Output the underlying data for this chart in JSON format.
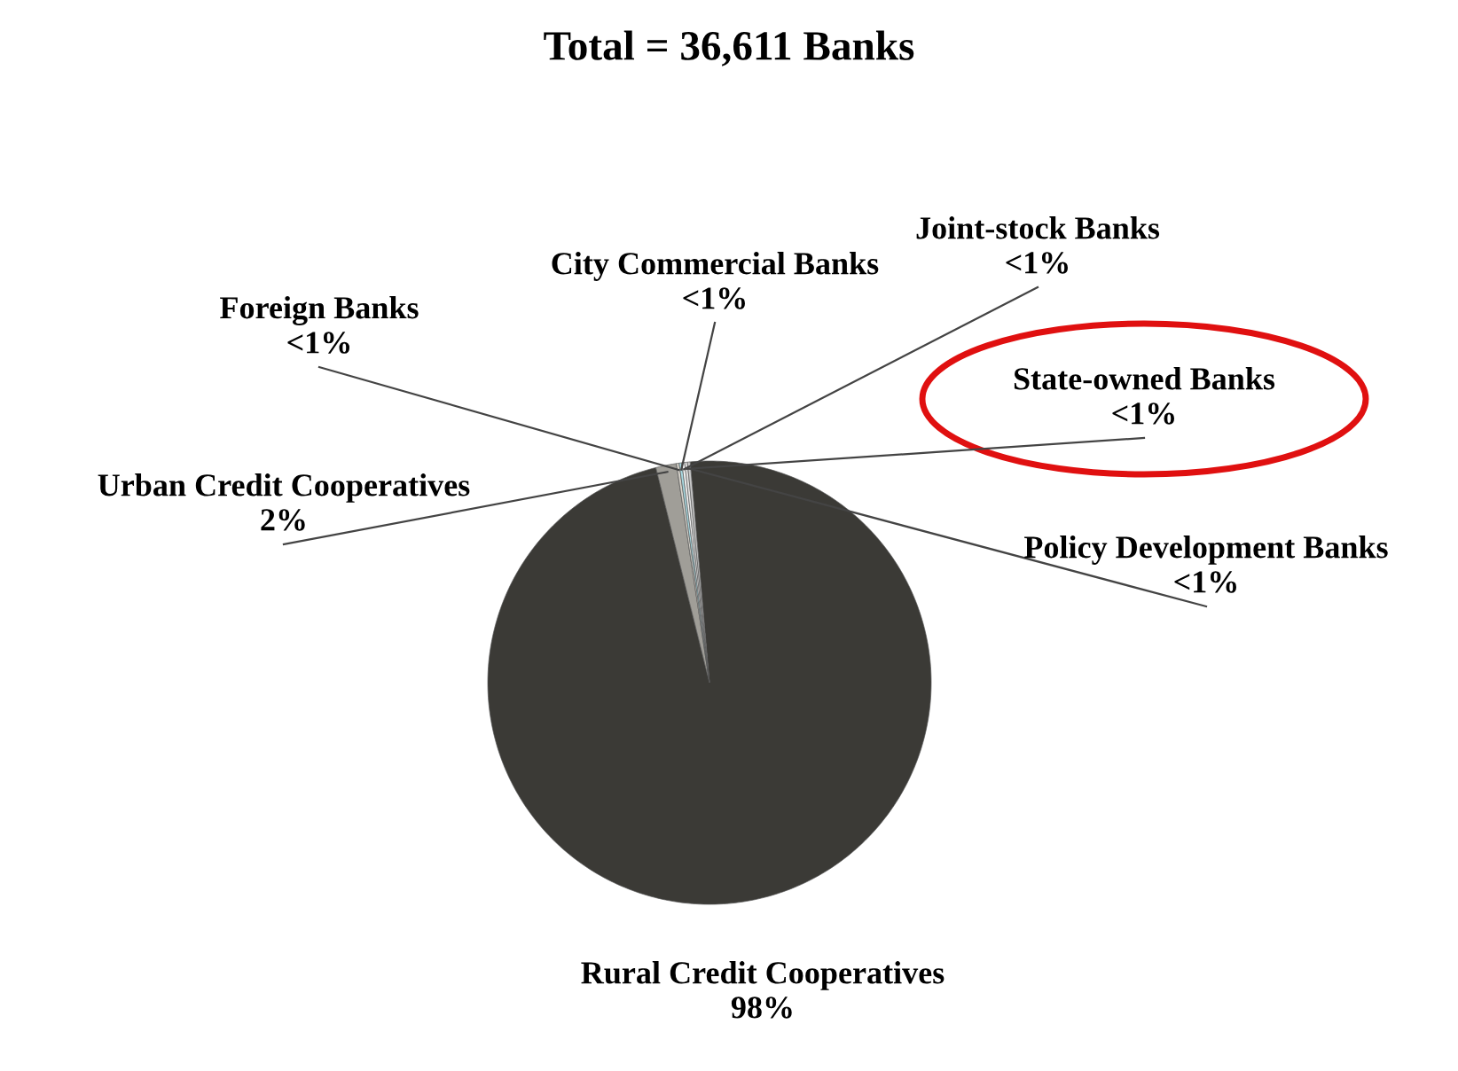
{
  "chart_data": {
    "type": "pie",
    "title": "Total = 36,611 Banks",
    "categories": [
      "Rural Credit Cooperatives",
      "Urban Credit Cooperatives",
      "Foreign Banks",
      "City Commercial Banks",
      "Joint-stock Banks",
      "State-owned Banks",
      "Policy Development Banks"
    ],
    "values": [
      97.5,
      1.5,
      0.2,
      0.2,
      0.2,
      0.2,
      0.2
    ],
    "colors": [
      "#3b3a36",
      "#a09e98",
      "#d8d4cc",
      "#a8d8e0",
      "#f4f4f4",
      "#e0e0e0",
      "#c8c8c8"
    ],
    "value_labels": [
      "98%",
      "2%",
      "<1%",
      "<1%",
      "<1%",
      "<1%",
      "<1%"
    ]
  }
}
